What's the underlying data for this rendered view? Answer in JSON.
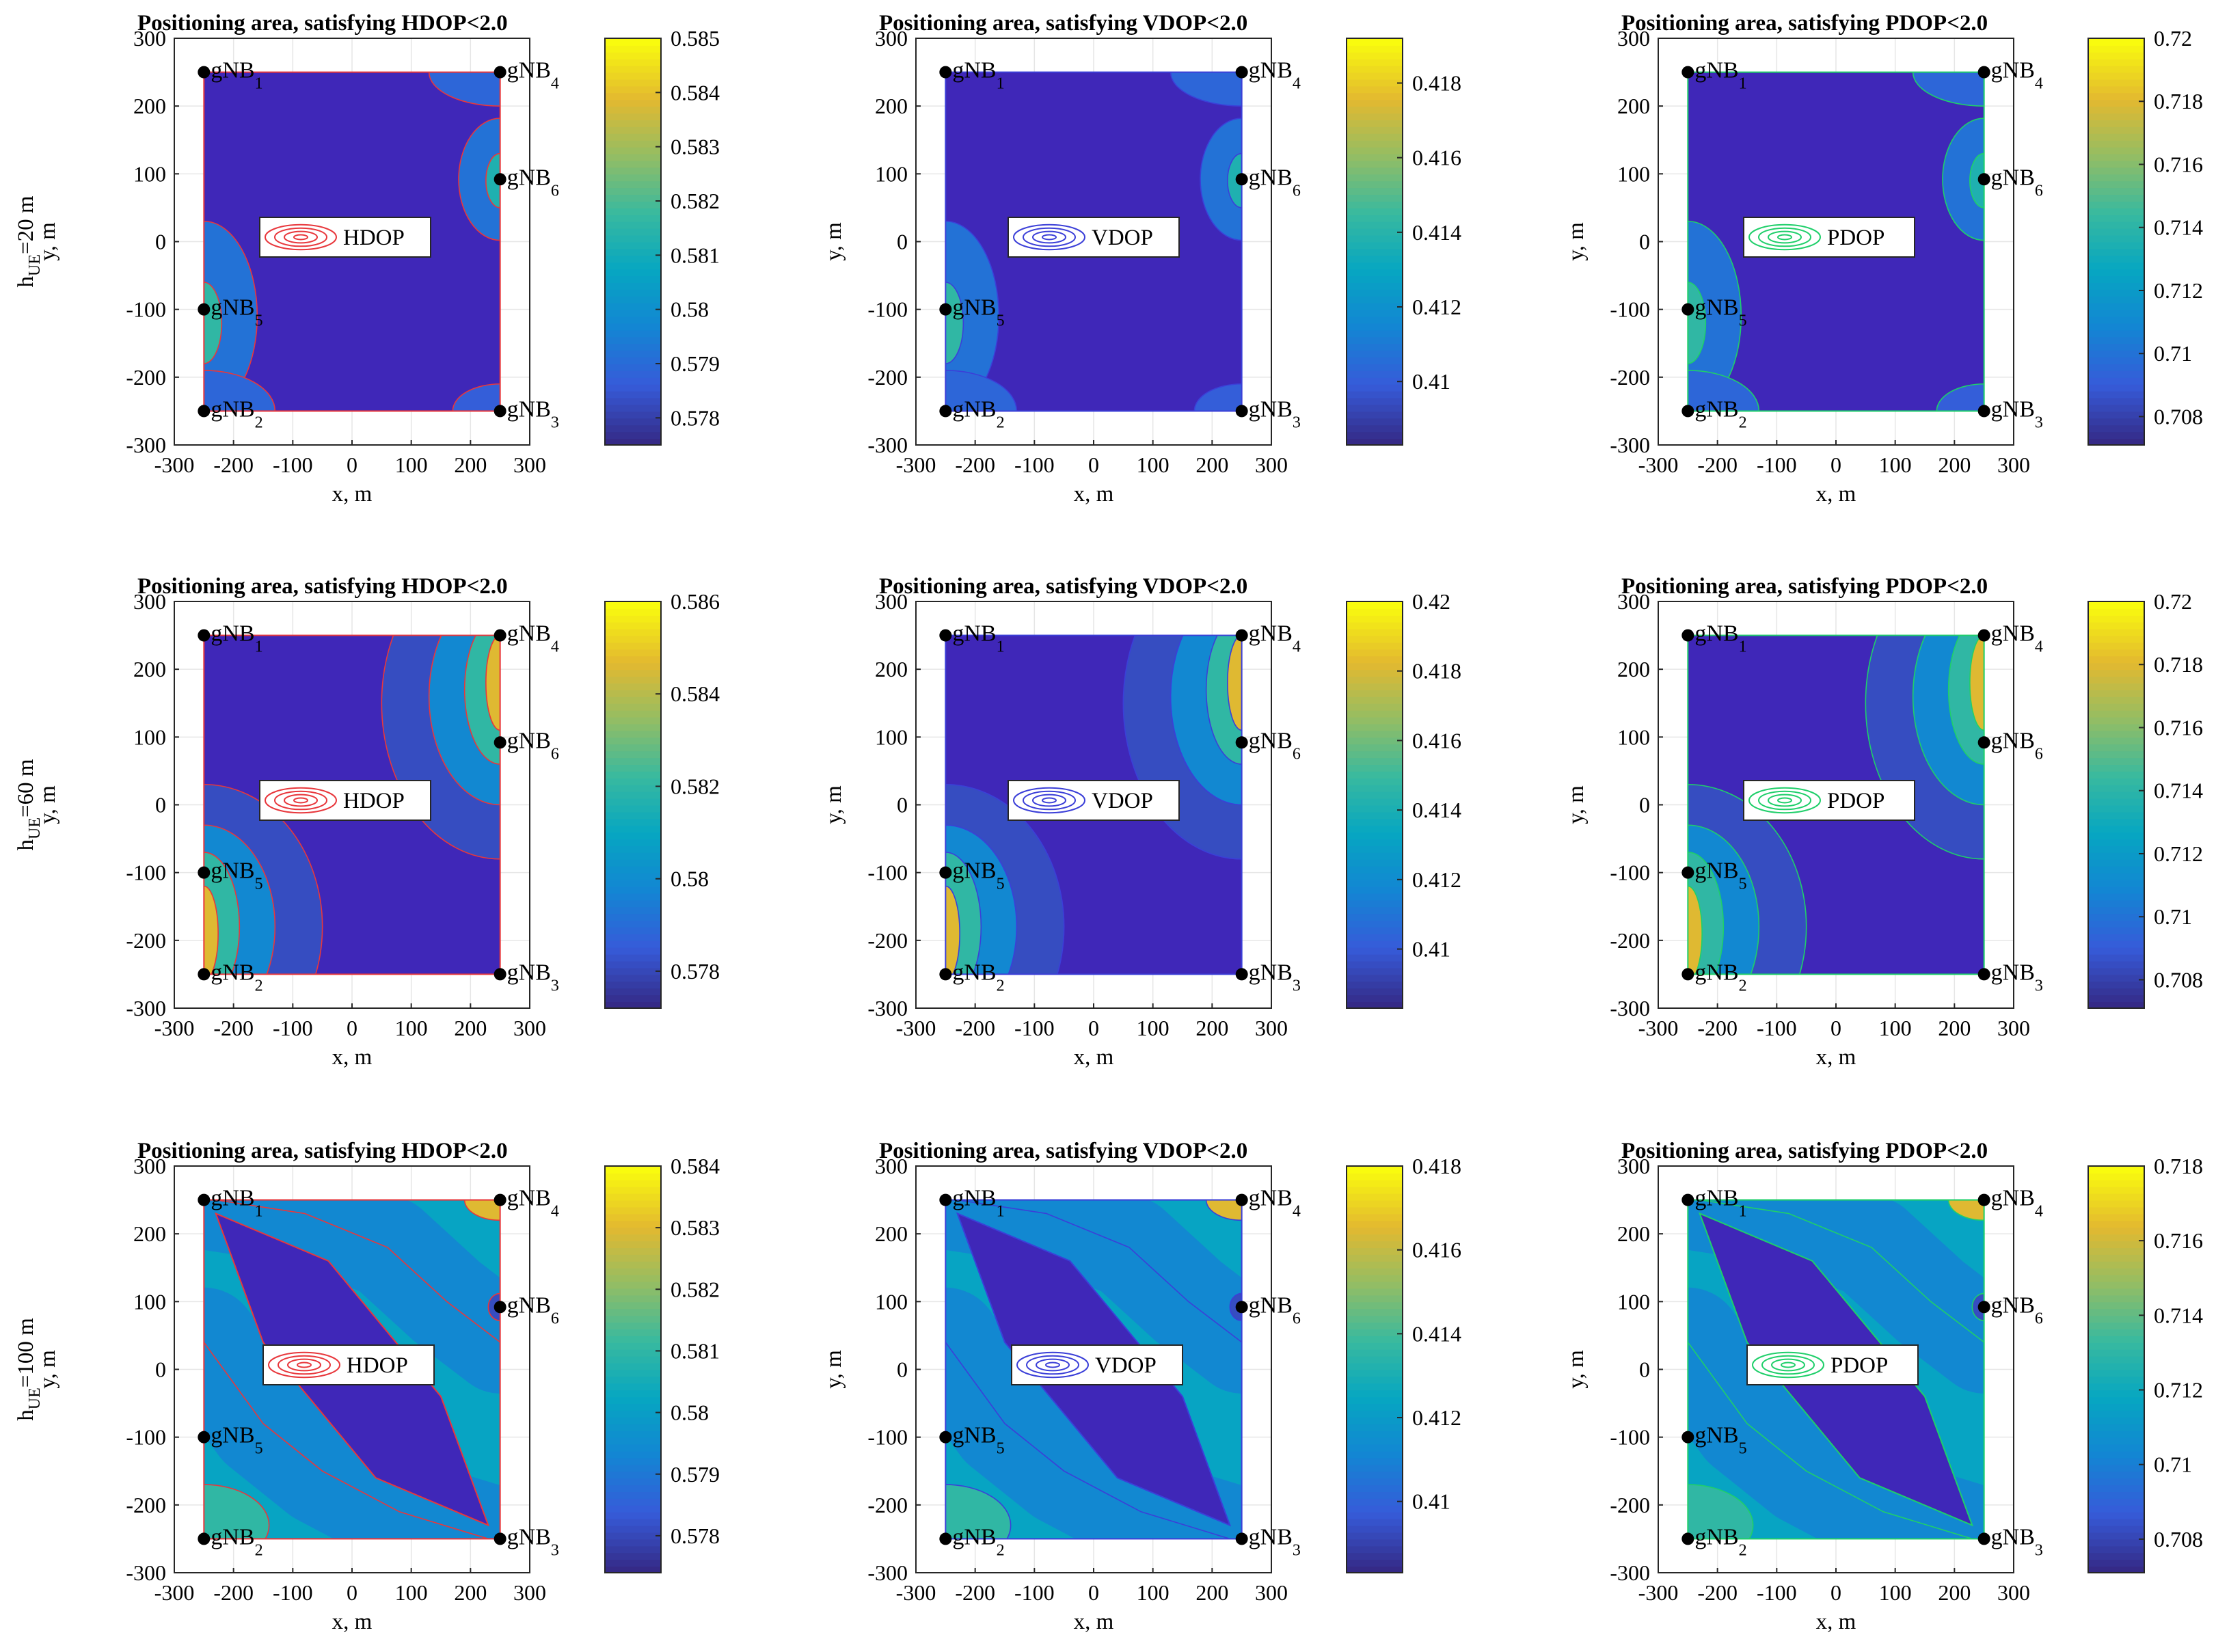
{
  "figure": {
    "row_labels": [
      {
        "prefix": "h",
        "sub": "UE",
        "suffix": "=20 m",
        "axis": "y, m"
      },
      {
        "prefix": "h",
        "sub": "UE",
        "suffix": "=60 m",
        "axis": "y, m"
      },
      {
        "prefix": "h",
        "sub": "UE",
        "suffix": "=100 m",
        "axis": "y, m"
      }
    ],
    "gnb": [
      {
        "label": "gNB",
        "index": "1",
        "x": -250,
        "y": 250
      },
      {
        "label": "gNB",
        "index": "4",
        "x": 250,
        "y": 250
      },
      {
        "label": "gNB",
        "index": "6",
        "x": 250,
        "y": 92
      },
      {
        "label": "gNB",
        "index": "5",
        "x": -250,
        "y": -100
      },
      {
        "label": "gNB",
        "index": "2",
        "x": -250,
        "y": -250
      },
      {
        "label": "gNB",
        "index": "3",
        "x": 250,
        "y": -250
      }
    ],
    "colors": {
      "HDOP": "#e8373c",
      "VDOP": "#3b3fd8",
      "PDOP": "#1fcf6a",
      "base": "#3f27b8"
    }
  },
  "chart_data": [
    {
      "type": "heatmap",
      "row": 0,
      "col": 0,
      "metric": "HDOP",
      "title": "Positioning area, satisfying HDOP<2.0",
      "xlabel": "x, m",
      "ylabel": "y, m",
      "xlim": [
        -300,
        300
      ],
      "ylim": [
        -300,
        300
      ],
      "xticks": [
        "-300",
        "-200",
        "-100",
        "0",
        "100",
        "200",
        "300"
      ],
      "yticks": [
        "300",
        "200",
        "100",
        "0",
        "-100",
        "-200",
        "-300"
      ],
      "legend": "HDOP",
      "colorbar": {
        "min": 0.5775,
        "max": 0.585,
        "ticks": [
          "0.578",
          "0.579",
          "0.58",
          "0.581",
          "0.582",
          "0.583",
          "0.584",
          "0.585"
        ],
        "values": [
          0.578,
          0.579,
          0.58,
          0.581,
          0.582,
          0.583,
          0.584,
          0.585
        ]
      }
    },
    {
      "type": "heatmap",
      "row": 0,
      "col": 1,
      "metric": "VDOP",
      "title": "Positioning area, satisfying VDOP<2.0",
      "xlabel": "x, m",
      "ylabel": "y, m",
      "xlim": [
        -300,
        300
      ],
      "ylim": [
        -300,
        300
      ],
      "xticks": [
        "-300",
        "-200",
        "-100",
        "0",
        "100",
        "200",
        "300"
      ],
      "yticks": [
        "300",
        "200",
        "100",
        "0",
        "-100",
        "-200",
        "-300"
      ],
      "legend": "VDOP",
      "colorbar": {
        "min": 0.4083,
        "max": 0.4192,
        "ticks": [
          "0.41",
          "0.412",
          "0.414",
          "0.416",
          "0.418"
        ],
        "values": [
          0.41,
          0.412,
          0.414,
          0.416,
          0.418
        ]
      }
    },
    {
      "type": "heatmap",
      "row": 0,
      "col": 2,
      "metric": "PDOP",
      "title": "Positioning area, satisfying PDOP<2.0",
      "xlabel": "x, m",
      "ylabel": "y, m",
      "xlim": [
        -300,
        300
      ],
      "ylim": [
        -300,
        300
      ],
      "xticks": [
        "-300",
        "-200",
        "-100",
        "0",
        "100",
        "200",
        "300"
      ],
      "yticks": [
        "300",
        "200",
        "100",
        "0",
        "-100",
        "-200",
        "-300"
      ],
      "legend": "PDOP",
      "colorbar": {
        "min": 0.7071,
        "max": 0.72,
        "ticks": [
          "0.708",
          "0.71",
          "0.712",
          "0.714",
          "0.716",
          "0.718",
          "0.72"
        ],
        "values": [
          0.708,
          0.71,
          0.712,
          0.714,
          0.716,
          0.718,
          0.72
        ]
      }
    },
    {
      "type": "heatmap",
      "row": 1,
      "col": 0,
      "metric": "HDOP",
      "title": "Positioning area, satisfying HDOP<2.0",
      "xlabel": "x, m",
      "ylabel": "y, m",
      "xlim": [
        -300,
        300
      ],
      "ylim": [
        -300,
        300
      ],
      "xticks": [
        "-300",
        "-200",
        "-100",
        "0",
        "100",
        "200",
        "300"
      ],
      "yticks": [
        "300",
        "200",
        "100",
        "0",
        "-100",
        "-200",
        "-300"
      ],
      "legend": "HDOP",
      "colorbar": {
        "min": 0.5772,
        "max": 0.586,
        "ticks": [
          "0.578",
          "0.58",
          "0.582",
          "0.584",
          "0.586"
        ],
        "values": [
          0.578,
          0.58,
          0.582,
          0.584,
          0.586
        ]
      }
    },
    {
      "type": "heatmap",
      "row": 1,
      "col": 1,
      "metric": "VDOP",
      "title": "Positioning area, satisfying VDOP<2.0",
      "xlabel": "x, m",
      "ylabel": "y, m",
      "xlim": [
        -300,
        300
      ],
      "ylim": [
        -300,
        300
      ],
      "xticks": [
        "-300",
        "-200",
        "-100",
        "0",
        "100",
        "200",
        "300"
      ],
      "yticks": [
        "300",
        "200",
        "100",
        "0",
        "-100",
        "-200",
        "-300"
      ],
      "legend": "VDOP",
      "colorbar": {
        "min": 0.4083,
        "max": 0.42,
        "ticks": [
          "0.41",
          "0.412",
          "0.414",
          "0.416",
          "0.418",
          "0.42"
        ],
        "values": [
          0.41,
          0.412,
          0.414,
          0.416,
          0.418,
          0.42
        ]
      }
    },
    {
      "type": "heatmap",
      "row": 1,
      "col": 2,
      "metric": "PDOP",
      "title": "Positioning area, satisfying PDOP<2.0",
      "xlabel": "x, m",
      "ylabel": "y, m",
      "xlim": [
        -300,
        300
      ],
      "ylim": [
        -300,
        300
      ],
      "xticks": [
        "-300",
        "-200",
        "-100",
        "0",
        "100",
        "200",
        "300"
      ],
      "yticks": [
        "300",
        "200",
        "100",
        "0",
        "-100",
        "-200",
        "-300"
      ],
      "legend": "PDOP",
      "colorbar": {
        "min": 0.7071,
        "max": 0.72,
        "ticks": [
          "0.708",
          "0.71",
          "0.712",
          "0.714",
          "0.716",
          "0.718",
          "0.72"
        ],
        "values": [
          0.708,
          0.71,
          0.712,
          0.714,
          0.716,
          0.718,
          0.72
        ]
      }
    },
    {
      "type": "heatmap",
      "row": 2,
      "col": 0,
      "metric": "HDOP",
      "title": "Positioning area, satisfying HDOP<2.0",
      "xlabel": "x, m",
      "ylabel": "y, m",
      "xlim": [
        -300,
        300
      ],
      "ylim": [
        -300,
        300
      ],
      "xticks": [
        "-300",
        "-200",
        "-100",
        "0",
        "100",
        "200",
        "300"
      ],
      "yticks": [
        "300",
        "200",
        "100",
        "0",
        "-100",
        "-200",
        "-300"
      ],
      "legend": "HDOP",
      "colorbar": {
        "min": 0.5774,
        "max": 0.584,
        "ticks": [
          "0.578",
          "0.579",
          "0.58",
          "0.581",
          "0.582",
          "0.583",
          "0.584"
        ],
        "values": [
          0.578,
          0.579,
          0.58,
          0.581,
          0.582,
          0.583,
          0.584
        ]
      }
    },
    {
      "type": "heatmap",
      "row": 2,
      "col": 1,
      "metric": "VDOP",
      "title": "Positioning area, satisfying VDOP<2.0",
      "xlabel": "x, m",
      "ylabel": "y, m",
      "xlim": [
        -300,
        300
      ],
      "ylim": [
        -300,
        300
      ],
      "xticks": [
        "-300",
        "-200",
        "-100",
        "0",
        "100",
        "200",
        "300"
      ],
      "yticks": [
        "300",
        "200",
        "100",
        "0",
        "-100",
        "-200",
        "-300"
      ],
      "legend": "VDOP",
      "colorbar": {
        "min": 0.4083,
        "max": 0.418,
        "ticks": [
          "0.41",
          "0.412",
          "0.414",
          "0.416",
          "0.418"
        ],
        "values": [
          0.41,
          0.412,
          0.414,
          0.416,
          0.418
        ]
      }
    },
    {
      "type": "heatmap",
      "row": 2,
      "col": 2,
      "metric": "PDOP",
      "title": "Positioning area, satisfying PDOP<2.0",
      "xlabel": "x, m",
      "ylabel": "y, m",
      "xlim": [
        -300,
        300
      ],
      "ylim": [
        -300,
        300
      ],
      "xticks": [
        "-300",
        "-200",
        "-100",
        "0",
        "100",
        "200",
        "300"
      ],
      "yticks": [
        "300",
        "200",
        "100",
        "0",
        "-100",
        "-200",
        "-300"
      ],
      "legend": "PDOP",
      "colorbar": {
        "min": 0.7071,
        "max": 0.718,
        "ticks": [
          "0.708",
          "0.71",
          "0.712",
          "0.714",
          "0.716",
          "0.718"
        ],
        "values": [
          0.708,
          0.71,
          0.712,
          0.714,
          0.716,
          0.718
        ]
      }
    }
  ]
}
